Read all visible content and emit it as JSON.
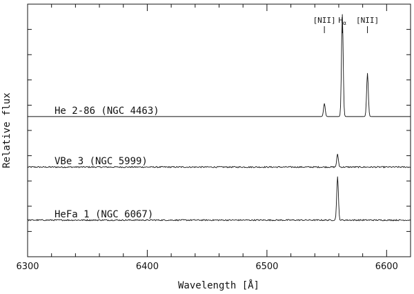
{
  "chart_data": {
    "type": "line",
    "title": "",
    "xlabel": "Wavelength [Å]",
    "ylabel": "Relative flux",
    "xlim": [
      6300,
      6620
    ],
    "ylim": [
      0,
      10
    ],
    "xticks": [
      6300,
      6400,
      6500,
      6600
    ],
    "grid": false,
    "line_labels": [
      {
        "text": "[NII]",
        "x": 6548
      },
      {
        "text": "Hα",
        "x": 6563
      },
      {
        "text": "[NII]",
        "x": 6584
      }
    ],
    "series": [
      {
        "name": "He 2-86  (NGC 4463)",
        "baseline": 5.55,
        "noise": 0.0,
        "peaks": [
          {
            "x": 6548,
            "height": 0.52
          },
          {
            "x": 6563,
            "height": 4.05
          },
          {
            "x": 6584,
            "height": 1.72
          }
        ]
      },
      {
        "name": "VBe 3  (NGC 5999)",
        "baseline": 3.55,
        "noise": 0.05,
        "peaks": [
          {
            "x": 6559,
            "height": 0.5
          }
        ]
      },
      {
        "name": "HeFa 1  (NGC 6067)",
        "baseline": 1.45,
        "noise": 0.05,
        "peaks": [
          {
            "x": 6559,
            "height": 1.72
          }
        ]
      }
    ]
  }
}
